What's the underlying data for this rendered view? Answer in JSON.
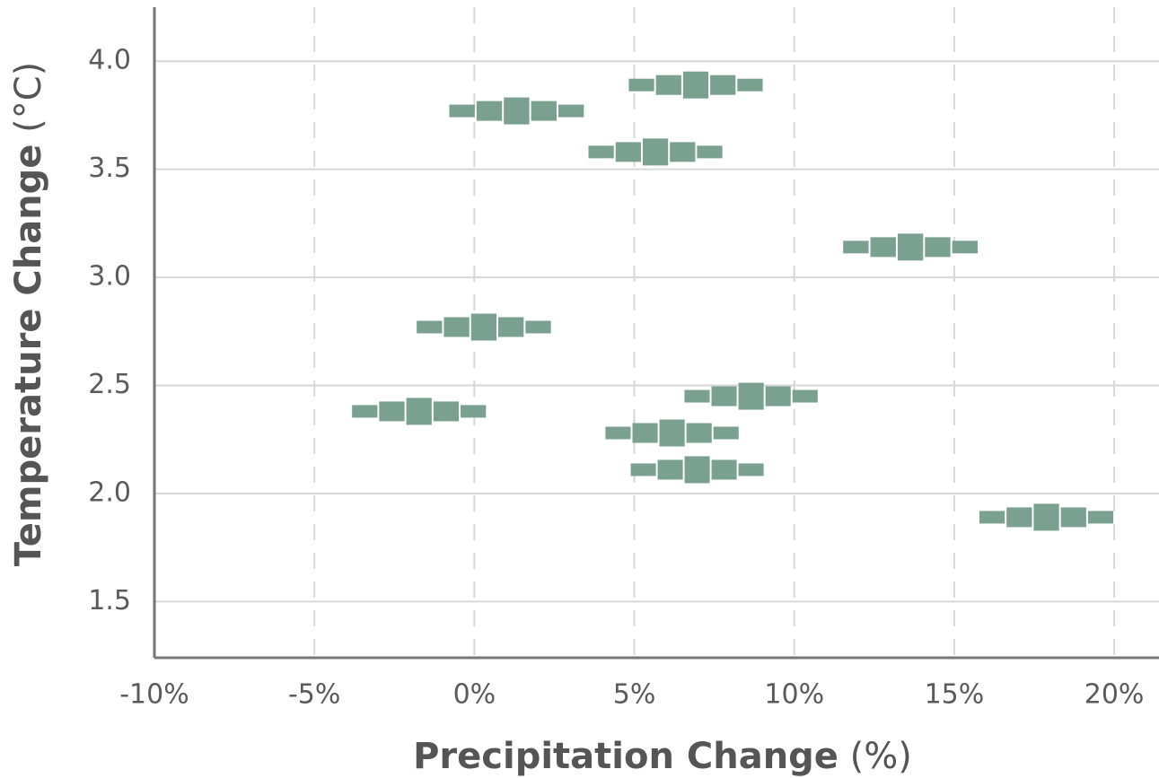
{
  "chart_data": {
    "type": "range-scatter",
    "x_label": "Precipitation Change",
    "x_label_unit": "(%)",
    "y_label": "Temperature Change",
    "y_label_unit": "(°C)",
    "color": "#7aa090",
    "x": [
      1.32,
      6.94,
      5.65,
      13.65,
      0.28,
      -1.74,
      8.65,
      6.18,
      6.97,
      17.87
    ],
    "x_low": [
      -0.81,
      4.8,
      3.54,
      11.5,
      -1.83,
      -3.85,
      6.54,
      4.07,
      4.86,
      15.76
    ],
    "x_high": [
      3.45,
      9.04,
      7.78,
      15.76,
      2.42,
      0.39,
      10.76,
      8.29,
      9.07,
      20
    ],
    "y": [
      3.77,
      3.89,
      3.58,
      3.14,
      2.77,
      2.38,
      2.45,
      2.28,
      2.11,
      1.89
    ],
    "xlim": [
      -10,
      21.4
    ],
    "ylim": [
      1.24,
      4.25
    ],
    "xticks": [
      {
        "value": -10,
        "label": "-10%"
      },
      {
        "value": -5,
        "label": "-5%"
      },
      {
        "value": 0,
        "label": "0%"
      },
      {
        "value": 5,
        "label": "5%"
      },
      {
        "value": 10,
        "label": "10%"
      },
      {
        "value": 15,
        "label": "15%"
      },
      {
        "value": 20,
        "label": "20%"
      }
    ],
    "yticks": [
      1.5,
      {
        "value": 2,
        "label": "2.0"
      },
      2.5,
      {
        "value": 3,
        "label": "3.0"
      },
      3.5,
      {
        "value": 4,
        "label": "4.0"
      }
    ],
    "grid": true
  }
}
